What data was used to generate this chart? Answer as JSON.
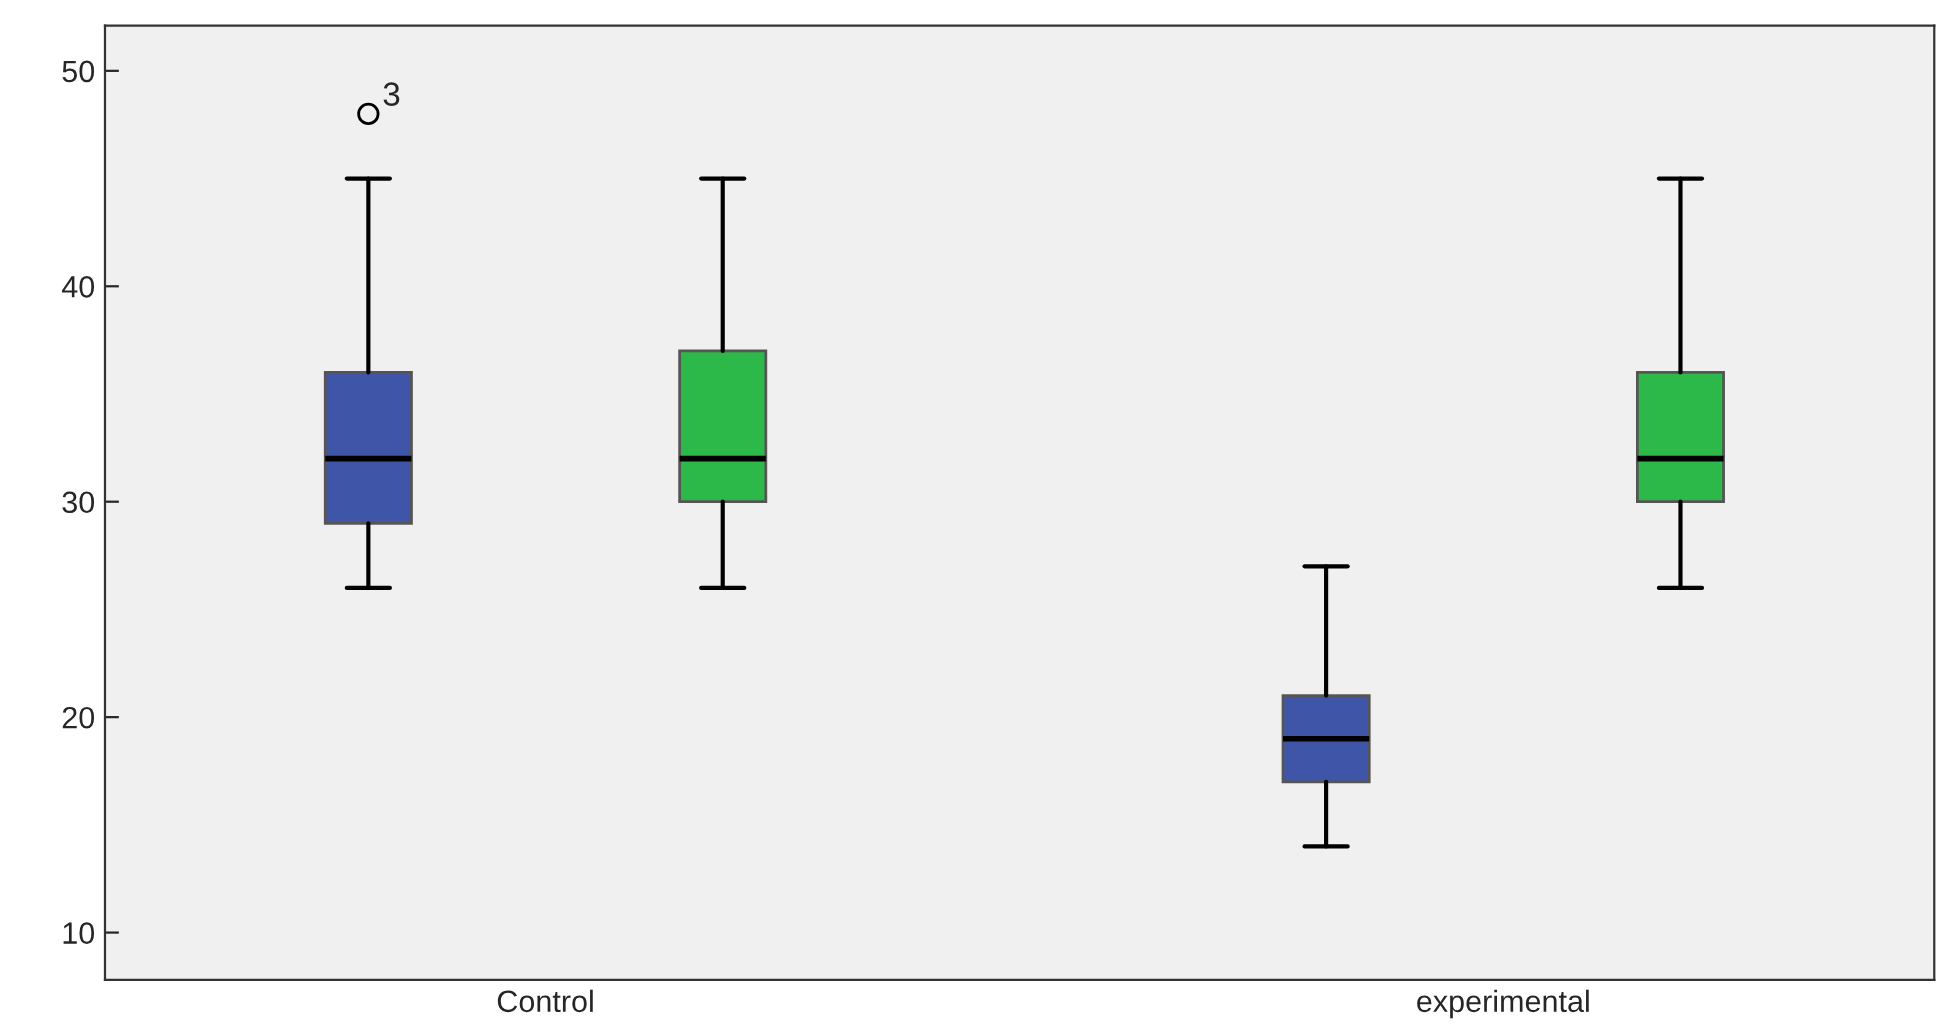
{
  "chart_data": {
    "type": "box",
    "categories": [
      "Control",
      "experimental"
    ],
    "series": [
      {
        "color": "#3f56a8",
        "boxes": [
          {
            "low": 26,
            "q1": 29,
            "median": 32,
            "q3": 36,
            "high": 45,
            "outliers": [
              48
            ]
          },
          {
            "low": 14,
            "q1": 17,
            "median": 19,
            "q3": 21,
            "high": 27
          }
        ]
      },
      {
        "color": "#2db84a",
        "boxes": [
          {
            "low": 26,
            "q1": 30,
            "median": 32,
            "q3": 37,
            "high": 45
          },
          {
            "low": 26,
            "q1": 30,
            "median": 32,
            "q3": 36,
            "high": 45
          }
        ]
      }
    ],
    "annotations": [
      "3"
    ],
    "ylim": [
      7.8,
      52.1
    ],
    "yticks": [
      10,
      20,
      30,
      40,
      50
    ],
    "grid": false,
    "legend": false
  }
}
